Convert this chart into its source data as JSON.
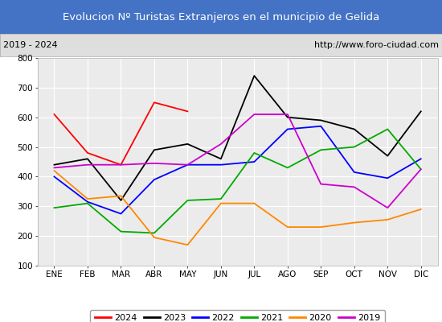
{
  "title": "Evolucion Nº Turistas Extranjeros en el municipio de Gelida",
  "subtitle_left": "2019 - 2024",
  "subtitle_right": "http://www.foro-ciudad.com",
  "title_bg_color": "#4472c4",
  "title_text_color": "#ffffff",
  "subtitle_bg_color": "#dedede",
  "plot_bg_color": "#ebebeb",
  "months": [
    "ENE",
    "FEB",
    "MAR",
    "ABR",
    "MAY",
    "JUN",
    "JUL",
    "AGO",
    "SEP",
    "OCT",
    "NOV",
    "DIC"
  ],
  "ylim": [
    100,
    800
  ],
  "yticks": [
    100,
    200,
    300,
    400,
    500,
    600,
    700,
    800
  ],
  "series": {
    "2024": {
      "color": "#ff0000",
      "values": [
        610,
        480,
        440,
        650,
        620,
        null,
        null,
        null,
        null,
        null,
        null,
        null
      ]
    },
    "2023": {
      "color": "#000000",
      "values": [
        440,
        460,
        320,
        490,
        510,
        460,
        740,
        600,
        590,
        560,
        470,
        620
      ]
    },
    "2022": {
      "color": "#0000ff",
      "values": [
        400,
        315,
        275,
        390,
        440,
        440,
        450,
        560,
        570,
        415,
        395,
        460
      ]
    },
    "2021": {
      "color": "#00aa00",
      "values": [
        295,
        310,
        215,
        210,
        320,
        325,
        480,
        430,
        490,
        500,
        560,
        425
      ]
    },
    "2020": {
      "color": "#ff8800",
      "values": [
        420,
        325,
        335,
        195,
        170,
        310,
        310,
        230,
        230,
        245,
        255,
        290
      ]
    },
    "2019": {
      "color": "#cc00cc",
      "values": [
        430,
        440,
        440,
        445,
        440,
        510,
        610,
        610,
        375,
        365,
        295,
        425
      ]
    }
  },
  "series_order": [
    "2024",
    "2023",
    "2022",
    "2021",
    "2020",
    "2019"
  ]
}
